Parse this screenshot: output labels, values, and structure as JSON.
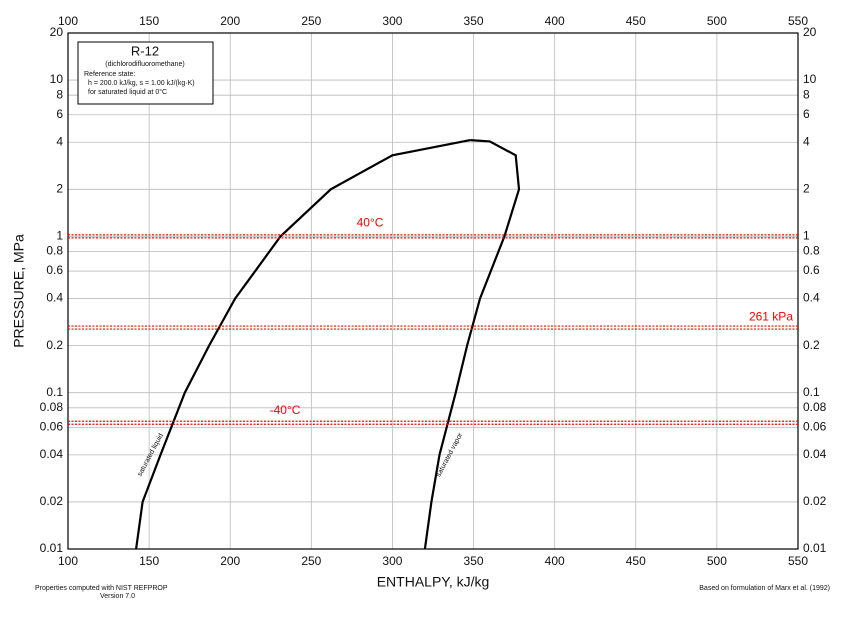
{
  "chart_data": {
    "type": "line",
    "title": "R-12",
    "subtitle": "(dichlorodifluoromethane)",
    "reference_state": [
      "Reference state:",
      "h = 200.0 kJ/kg, s = 1.00 kJ/(kg·K)",
      "for saturated liquid at 0°C"
    ],
    "x_label": "ENTHALPY, kJ/kg",
    "y_label": "PRESSURE, MPa",
    "footnote_left": [
      "Properties computed with NIST REFPROP",
      "Version 7.0"
    ],
    "footnote_right": "Based on formulation of Marx et al. (1992)",
    "log_y": true,
    "grid": true,
    "xlim": [
      100,
      550
    ],
    "xticks": [
      100,
      150,
      200,
      250,
      300,
      350,
      400,
      450,
      500,
      550
    ],
    "ylim": [
      0.01,
      20
    ],
    "yticks": [
      0.01,
      0.02,
      0.04,
      0.06,
      0.08,
      0.1,
      0.2,
      0.4,
      0.6,
      0.8,
      1,
      2,
      4,
      6,
      8,
      10,
      20
    ],
    "series": [
      {
        "name": "saturated liquid",
        "color": "#000000",
        "x": [
          142,
          146,
          157,
          172,
          187,
          203,
          231,
          262,
          300,
          348
        ],
        "values": [
          0.01,
          0.02,
          0.04,
          0.1,
          0.2,
          0.4,
          1,
          2,
          3.3,
          4.13
        ]
      },
      {
        "name": "saturated vapor",
        "color": "#000000",
        "x": [
          320,
          324,
          329,
          339,
          346,
          354,
          369,
          378,
          376,
          360,
          348
        ],
        "values": [
          0.01,
          0.02,
          0.04,
          0.1,
          0.2,
          0.4,
          1,
          2,
          3.3,
          4.05,
          4.13
        ]
      }
    ],
    "reference_lines": [
      {
        "value": 1,
        "label": "40°C",
        "color": "#ff0000"
      },
      {
        "value": 0.261,
        "label": "261 kPa",
        "color": "#ff0000"
      },
      {
        "value": 0.0642,
        "label": "-40°C",
        "color": "#ff0000"
      }
    ]
  }
}
